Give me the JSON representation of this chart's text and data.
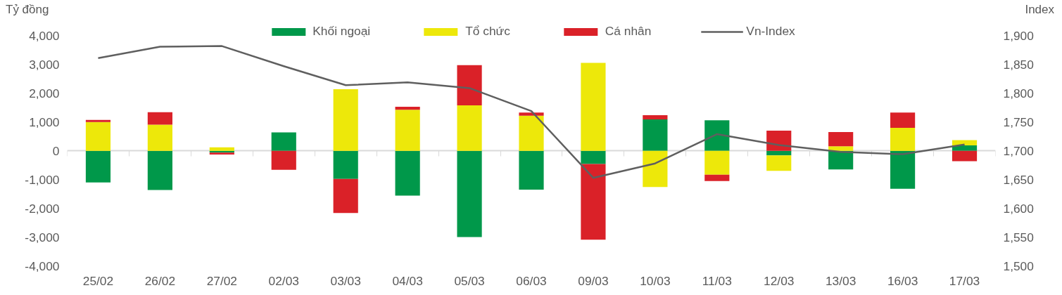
{
  "chart_data": {
    "type": "bar",
    "stacked": true,
    "ylabel": "Tỷ đồng",
    "y2label": "Index",
    "categories": [
      "25/02",
      "26/02",
      "27/02",
      "02/03",
      "03/03",
      "04/03",
      "05/03",
      "06/03",
      "09/03",
      "10/03",
      "11/03",
      "12/03",
      "13/03",
      "16/03",
      "17/03"
    ],
    "series": [
      {
        "name": "Khối ngoại",
        "color": "#00984a",
        "values": [
          -1100,
          -1360,
          -60,
          640,
          -980,
          -1560,
          -3000,
          -1350,
          -460,
          1090,
          1060,
          -160,
          -650,
          -1320,
          190
        ]
      },
      {
        "name": "Tổ chức",
        "color": "#ede80a",
        "values": [
          1000,
          910,
          120,
          0,
          2140,
          1430,
          1580,
          1220,
          3060,
          -1260,
          -830,
          -540,
          160,
          800,
          180
        ]
      },
      {
        "name": "Cá nhân",
        "color": "#da2128",
        "values": [
          70,
          430,
          -70,
          -660,
          -1180,
          100,
          1400,
          110,
          -2630,
          150,
          -220,
          700,
          490,
          530,
          -360
        ]
      },
      {
        "name": "Vn-Index",
        "type": "line",
        "axis": "y2",
        "color": "#5f5f5f",
        "values": [
          1861,
          1881,
          1882,
          1847,
          1814,
          1819,
          1809,
          1769,
          1653,
          1678,
          1729,
          1710,
          1698,
          1694,
          1711
        ]
      }
    ],
    "ylim": [
      -4000,
      4400
    ],
    "yticks": [
      {
        "value": -4000,
        "label": "-4,000"
      },
      {
        "value": -3000,
        "label": "-3,000"
      },
      {
        "value": -2000,
        "label": "-2,000"
      },
      {
        "value": -1000,
        "label": "-1,000"
      },
      0,
      {
        "value": 1000,
        "label": "1,000"
      },
      {
        "value": 2000,
        "label": "2,000"
      },
      {
        "value": 3000,
        "label": "3,000"
      },
      {
        "value": 4000,
        "label": "4,000"
      }
    ],
    "y2lim": [
      1500,
      1920
    ],
    "y2ticks": [
      {
        "value": 1500,
        "label": "1,500"
      },
      {
        "value": 1550,
        "label": "1,550"
      },
      {
        "value": 1600,
        "label": "1,600"
      },
      {
        "value": 1650,
        "label": "1,650"
      },
      {
        "value": 1700,
        "label": "1,700"
      },
      {
        "value": 1750,
        "label": "1,750"
      },
      {
        "value": 1800,
        "label": "1,800"
      },
      {
        "value": 1850,
        "label": "1,850"
      },
      {
        "value": 1900,
        "label": "1,900"
      }
    ],
    "legend": "top"
  }
}
